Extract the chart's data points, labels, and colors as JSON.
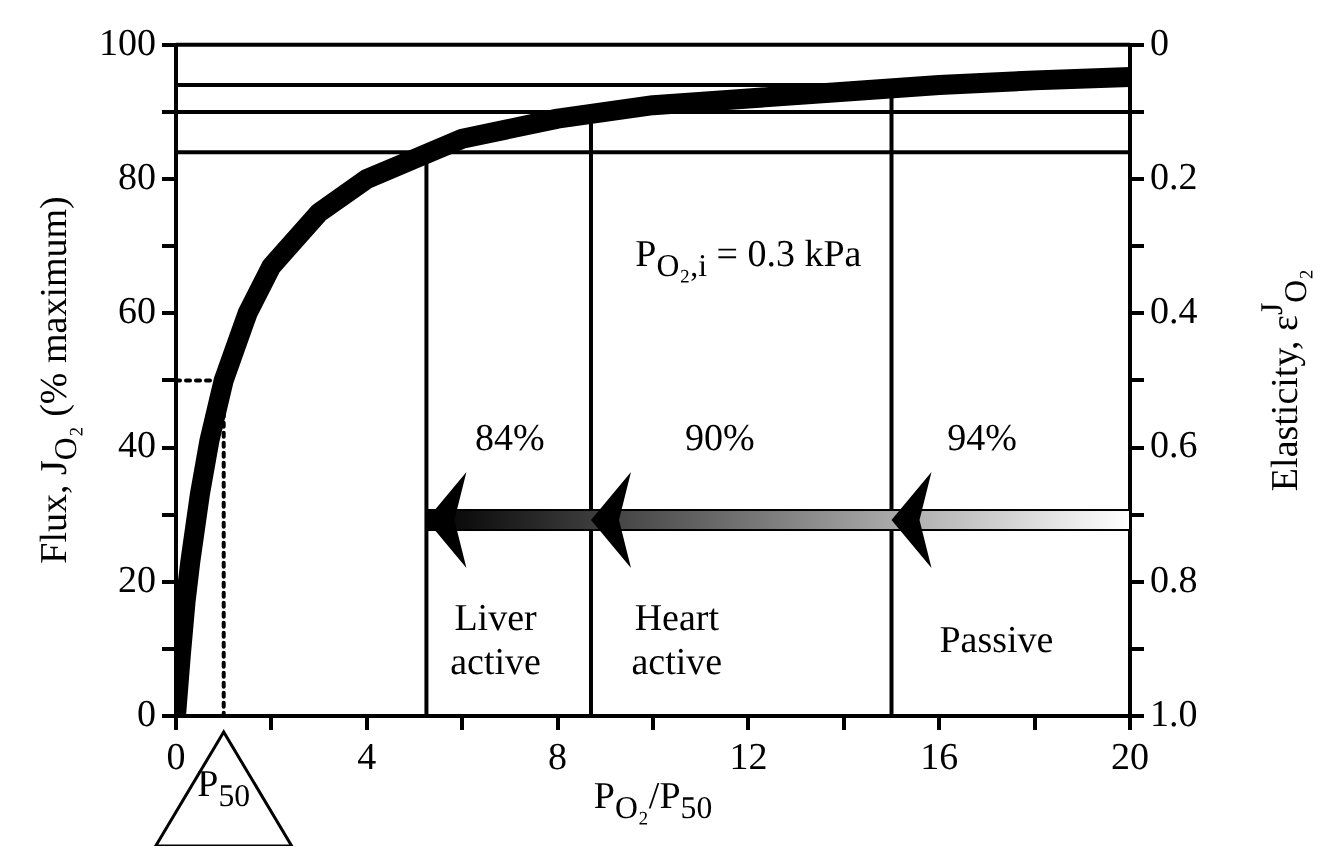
{
  "chart_data": {
    "type": "line",
    "xlabel": "P$_{O₂}$/P$_{50}$",
    "ylabel": "Flux, J$_{O₂}$ (% maximum)",
    "y2label": "Elasticity, ε$^{J}$$_{O₂}$",
    "xlim": [
      0,
      20
    ],
    "xticks": [
      0,
      {
        "value": 2,
        "label": null
      },
      4,
      {
        "value": 6,
        "label": null
      },
      8,
      {
        "value": 10,
        "label": null
      },
      12,
      {
        "value": 14,
        "label": null
      },
      16,
      {
        "value": 18,
        "label": null
      },
      20
    ],
    "ylim": [
      0,
      100
    ],
    "yticks": [
      0,
      {
        "value": 10,
        "label": null
      },
      20,
      {
        "value": 30,
        "label": null
      },
      40,
      {
        "value": 50,
        "label": null
      },
      60,
      {
        "value": 70,
        "label": null
      },
      80,
      {
        "value": 90,
        "label": null
      },
      100
    ],
    "y2lim": [
      1,
      0
    ],
    "y2ticks": [
      {
        "value": 1,
        "label": "1.0"
      },
      {
        "value": 0.9,
        "label": null
      },
      0.8,
      {
        "value": 0.7,
        "label": null
      },
      0.6,
      {
        "value": 0.5,
        "label": null
      },
      0.4,
      {
        "value": 0.3,
        "label": null
      },
      0.2,
      {
        "value": 0.1,
        "label": null
      },
      0
    ],
    "grid": false,
    "legend": false,
    "marker": "none",
    "series": [
      {
        "color": "#000000",
        "x": [
          0,
          0.1,
          0.2,
          0.3,
          0.5,
          0.7,
          1,
          1.5,
          2,
          3,
          4,
          5,
          6,
          8,
          10,
          12,
          14,
          16,
          18,
          20
        ],
        "values": [
          0,
          9,
          17,
          23,
          33,
          41,
          50,
          60,
          67,
          75,
          80,
          83,
          86,
          89,
          91,
          92,
          93,
          94,
          94.7,
          95.2
        ]
      },
      {
        "color": "#000000",
        "line_style": "dotted",
        "x": [
          0,
          1,
          1
        ],
        "values": [
          50,
          50,
          0
        ]
      },
      {
        "color": "#000000",
        "x": [
          5.25,
          5.25
        ],
        "values": [
          0,
          84
        ]
      },
      {
        "color": "#000000",
        "x": [
          8.7,
          8.7
        ],
        "values": [
          0,
          90
        ]
      },
      {
        "color": "#000000",
        "x": [
          15,
          15
        ],
        "values": [
          0,
          94
        ]
      }
    ],
    "ref_lines": [
      {
        "axis": "y",
        "value": 84,
        "color": "#000000"
      },
      {
        "axis": "y",
        "value": 90,
        "color": "#000000"
      },
      {
        "axis": "y",
        "value": 94,
        "color": "#000000"
      }
    ],
    "annotations": [
      "P$_{O₂,i}$ = 0.3 kPa",
      "84%",
      "90%",
      "94%",
      "Liver\nactive",
      "Heart\nactive",
      "Passive",
      {
        "text": "P$_{50}$",
        "x": 1,
        "y": 0
      }
    ]
  }
}
